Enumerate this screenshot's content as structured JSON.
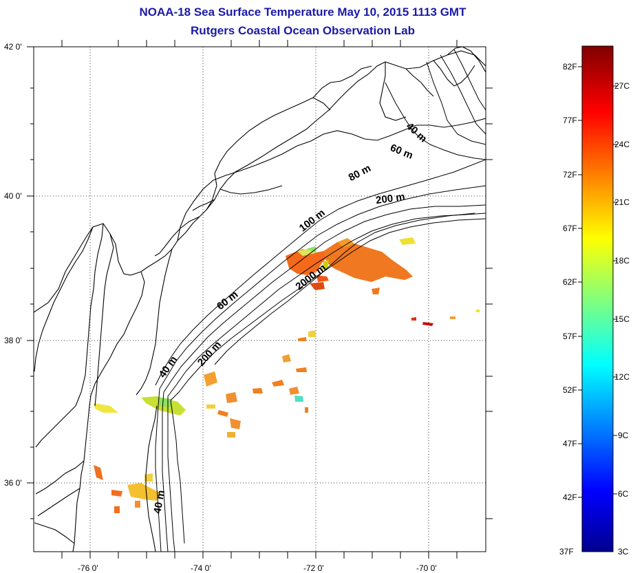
{
  "title": "NOAA-18 Sea Surface Temperature May 10, 2015 1113 GMT",
  "subtitle": "Rutgers Coastal Ocean Observation Lab",
  "map": {
    "lat_labels": [
      "42 0'",
      "40 0'",
      "38 0'",
      "36 0'"
    ],
    "lon_labels": [
      "-76 0'",
      "-74 0'",
      "-72 0'",
      "-70 0'"
    ],
    "lat_range": [
      35,
      42
    ],
    "lon_range": [
      -77,
      -69
    ],
    "isobath_labels": [
      "40 m",
      "60 m",
      "80 m",
      "200 m",
      "100 m",
      "2000 m",
      "60 m",
      "200 m",
      "40 m",
      "40 m"
    ]
  },
  "colorbar": {
    "fahrenheit_labels": [
      "82F",
      "77F",
      "72F",
      "67F",
      "62F",
      "57F",
      "52F",
      "47F",
      "42F",
      "37F"
    ],
    "celsius_labels": [
      "27C",
      "24C",
      "21C",
      "18C",
      "15C",
      "12C",
      "9C",
      "6C",
      "3C"
    ],
    "range_c": [
      3,
      28
    ],
    "colormap": "jet"
  }
}
